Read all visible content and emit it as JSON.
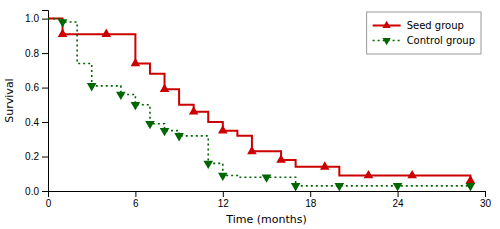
{
  "chart_data": {
    "type": "step",
    "xlabel": "Time (months)",
    "ylabel": "Survival",
    "xlim": [
      0,
      30
    ],
    "ylim": [
      0,
      1.05
    ],
    "xticks": [
      0,
      6,
      12,
      18,
      24,
      30
    ],
    "yticks": [
      {
        "value": 0.0,
        "label": "0.0"
      },
      0.2,
      0.4,
      0.6,
      0.8,
      {
        "value": 1.0,
        "label": "1.0"
      }
    ],
    "grid": false,
    "legend": "upper right",
    "series": [
      {
        "name": "Seed group",
        "color": "#cc0000",
        "line_style": "solid",
        "marker": "triangle-up",
        "x": [
          0,
          0,
          1,
          2,
          4,
          6,
          7,
          8,
          9,
          10,
          11,
          12,
          13,
          14,
          16,
          17,
          19,
          20,
          22,
          24,
          25,
          29
        ],
        "values": [
          1,
          1,
          0.91,
          0.91,
          0.91,
          0.74,
          0.68,
          0.59,
          0.5,
          0.46,
          0.4,
          0.35,
          0.32,
          0.23,
          0.18,
          0.14,
          0.14,
          0.09,
          0.09,
          0.09,
          0.09,
          0.06
        ],
        "marker_x": [
          1,
          4,
          6,
          8,
          10,
          12,
          14,
          16,
          19,
          22,
          25,
          29
        ],
        "marker_values": [
          0.91,
          0.91,
          0.74,
          0.59,
          0.46,
          0.35,
          0.23,
          0.18,
          0.14,
          0.09,
          0.09,
          0.06
        ]
      },
      {
        "name": "Control group",
        "color": "#006600",
        "line_style": "dotted",
        "marker": "triangle-down",
        "x": [
          0,
          1,
          2,
          3,
          5,
          6,
          7,
          8,
          9,
          11,
          12,
          13,
          14,
          15,
          17,
          18,
          20,
          22,
          24,
          29
        ],
        "values": [
          1,
          0.98,
          0.74,
          0.61,
          0.56,
          0.5,
          0.39,
          0.35,
          0.32,
          0.16,
          0.09,
          0.08,
          0.08,
          0.08,
          0.03,
          0.03,
          0.03,
          0.03,
          0.03,
          0.03
        ],
        "marker_x": [
          1,
          3,
          5,
          6,
          7,
          8,
          9,
          11,
          12,
          15,
          17,
          20,
          24,
          29
        ],
        "marker_values": [
          0.98,
          0.61,
          0.56,
          0.5,
          0.39,
          0.35,
          0.32,
          0.16,
          0.09,
          0.08,
          0.03,
          0.03,
          0.03,
          0.03
        ]
      }
    ]
  }
}
